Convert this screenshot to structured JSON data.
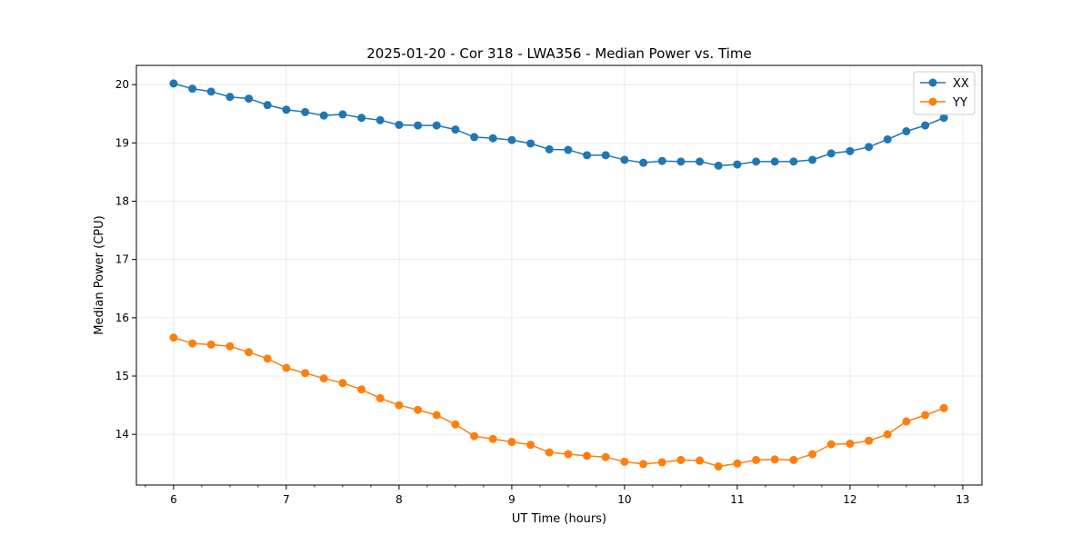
{
  "chart_data": {
    "type": "line",
    "title": "2025-01-20 - Cor 318 - LWA356 - Median Power vs. Time",
    "xlabel": "UT Time (hours)",
    "ylabel": "Median Power (CPU)",
    "xlim": [
      5.67,
      13.17
    ],
    "ylim": [
      13.13,
      20.33
    ],
    "xticks": [
      6,
      7,
      8,
      9,
      10,
      11,
      12,
      13
    ],
    "yticks": [
      14,
      15,
      16,
      17,
      18,
      19,
      20
    ],
    "grid": true,
    "legend_position": "top-right",
    "x": [
      6.0,
      6.167,
      6.333,
      6.5,
      6.667,
      6.833,
      7.0,
      7.167,
      7.333,
      7.5,
      7.667,
      7.833,
      8.0,
      8.167,
      8.333,
      8.5,
      8.667,
      8.833,
      9.0,
      9.167,
      9.333,
      9.5,
      9.667,
      9.833,
      10.0,
      10.167,
      10.333,
      10.5,
      10.667,
      10.833,
      11.0,
      11.167,
      11.333,
      11.5,
      11.667,
      11.833,
      12.0,
      12.167,
      12.333,
      12.5,
      12.667,
      12.833
    ],
    "series": [
      {
        "name": "XX",
        "color": "#1f77b4",
        "values": [
          20.02,
          19.93,
          19.88,
          19.79,
          19.76,
          19.65,
          19.57,
          19.53,
          19.47,
          19.49,
          19.43,
          19.39,
          19.31,
          19.3,
          19.3,
          19.23,
          19.1,
          19.08,
          19.05,
          18.99,
          18.89,
          18.88,
          18.79,
          18.79,
          18.71,
          18.66,
          18.69,
          18.68,
          18.68,
          18.61,
          18.63,
          18.68,
          18.68,
          18.68,
          18.71,
          18.82,
          18.86,
          18.93,
          19.06,
          19.2,
          19.3,
          19.43
        ]
      },
      {
        "name": "YY",
        "color": "#ff7f0e",
        "values": [
          15.66,
          15.56,
          15.54,
          15.51,
          15.41,
          15.3,
          15.14,
          15.05,
          14.96,
          14.88,
          14.77,
          14.62,
          14.5,
          14.42,
          14.33,
          14.17,
          13.97,
          13.92,
          13.87,
          13.82,
          13.69,
          13.66,
          13.63,
          13.61,
          13.53,
          13.49,
          13.52,
          13.56,
          13.55,
          13.45,
          13.5,
          13.56,
          13.57,
          13.56,
          13.66,
          13.83,
          13.84,
          13.89,
          14.0,
          14.22,
          14.33,
          14.45
        ]
      }
    ]
  }
}
